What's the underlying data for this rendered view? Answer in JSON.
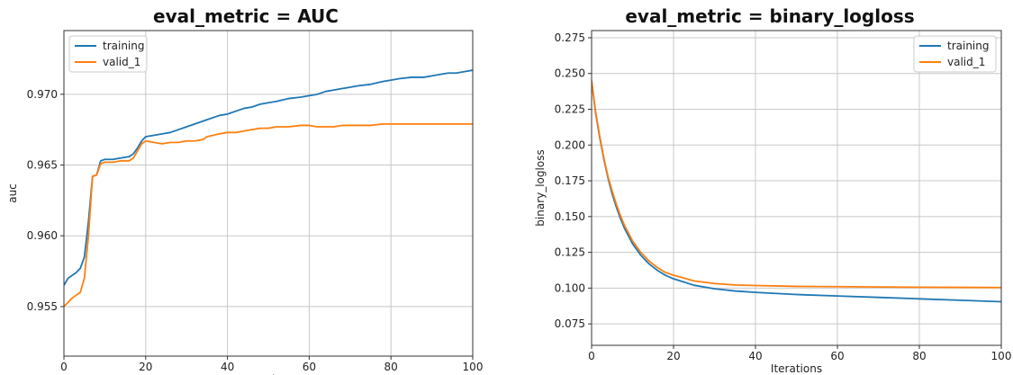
{
  "chart_data": [
    {
      "type": "line",
      "title": "eval_metric = AUC",
      "xlabel": "Iterations",
      "ylabel": "auc",
      "xlim": [
        0,
        100
      ],
      "ylim": [
        0.9515,
        0.9745
      ],
      "xticks": [
        0,
        20,
        40,
        60,
        80,
        100
      ],
      "xtick_labels": [
        "0",
        "20",
        "40",
        "60",
        "80",
        "100"
      ],
      "yticks": [
        0.955,
        0.96,
        0.965,
        0.97
      ],
      "ytick_labels": [
        "0.955",
        "0.960",
        "0.965",
        "0.970"
      ],
      "grid": true,
      "legend_position": "top-left",
      "series": [
        {
          "name": "training",
          "color": "#1f77b4",
          "x": [
            0,
            1,
            2,
            3,
            4,
            5,
            6,
            7,
            8,
            9,
            10,
            12,
            14,
            16,
            17,
            18,
            19,
            20,
            22,
            24,
            26,
            28,
            30,
            32,
            35,
            38,
            40,
            42,
            44,
            46,
            48,
            50,
            52,
            55,
            58,
            60,
            62,
            64,
            66,
            68,
            70,
            72,
            75,
            78,
            80,
            82,
            85,
            88,
            90,
            92,
            94,
            96,
            98,
            100
          ],
          "y": [
            0.9565,
            0.957,
            0.9572,
            0.9574,
            0.9577,
            0.9585,
            0.961,
            0.9642,
            0.9643,
            0.9653,
            0.9654,
            0.9654,
            0.9655,
            0.9656,
            0.9658,
            0.9662,
            0.9667,
            0.967,
            0.9671,
            0.9672,
            0.9673,
            0.9675,
            0.9677,
            0.9679,
            0.9682,
            0.9685,
            0.9686,
            0.9688,
            0.969,
            0.9691,
            0.9693,
            0.9694,
            0.9695,
            0.9697,
            0.9698,
            0.9699,
            0.97,
            0.9702,
            0.9703,
            0.9704,
            0.9705,
            0.9706,
            0.9707,
            0.9709,
            0.971,
            0.9711,
            0.9712,
            0.9712,
            0.9713,
            0.9714,
            0.9715,
            0.9715,
            0.9716,
            0.9717
          ]
        },
        {
          "name": "valid_1",
          "color": "#ff7f0e",
          "x": [
            0,
            1,
            2,
            3,
            4,
            5,
            6,
            7,
            8,
            9,
            10,
            12,
            14,
            16,
            17,
            18,
            19,
            20,
            22,
            24,
            26,
            28,
            30,
            32,
            34,
            35,
            38,
            40,
            42,
            44,
            46,
            48,
            50,
            52,
            55,
            58,
            60,
            62,
            64,
            66,
            68,
            70,
            72,
            75,
            78,
            80,
            82,
            85,
            88,
            90,
            92,
            94,
            96,
            98,
            100
          ],
          "y": [
            0.955,
            0.9553,
            0.9556,
            0.9558,
            0.956,
            0.957,
            0.96,
            0.9642,
            0.9643,
            0.9651,
            0.9652,
            0.9652,
            0.9653,
            0.9653,
            0.9655,
            0.966,
            0.9665,
            0.9667,
            0.9666,
            0.9665,
            0.9666,
            0.9666,
            0.9667,
            0.9667,
            0.9668,
            0.967,
            0.9672,
            0.9673,
            0.9673,
            0.9674,
            0.9675,
            0.9676,
            0.9676,
            0.9677,
            0.9677,
            0.9678,
            0.9678,
            0.9677,
            0.9677,
            0.9677,
            0.9678,
            0.9678,
            0.9678,
            0.9678,
            0.9679,
            0.9679,
            0.9679,
            0.9679,
            0.9679,
            0.9679,
            0.9679,
            0.9679,
            0.9679,
            0.9679,
            0.9679
          ]
        }
      ]
    },
    {
      "type": "line",
      "title": "eval_metric = binary_logloss",
      "xlabel": "Iterations",
      "ylabel": "binary_logloss",
      "xlim": [
        0,
        100
      ],
      "ylim": [
        0.06,
        0.28
      ],
      "xticks": [
        0,
        20,
        40,
        60,
        80,
        100
      ],
      "xtick_labels": [
        "0",
        "20",
        "40",
        "60",
        "80",
        "100"
      ],
      "yticks": [
        0.075,
        0.1,
        0.125,
        0.15,
        0.175,
        0.2,
        0.225,
        0.25,
        0.275
      ],
      "ytick_labels": [
        "0.075",
        "0.100",
        "0.125",
        "0.150",
        "0.175",
        "0.200",
        "0.225",
        "0.250",
        "0.275"
      ],
      "grid": true,
      "legend_position": "top-right",
      "series": [
        {
          "name": "training",
          "color": "#1f77b4",
          "x": [
            0,
            1,
            2,
            3,
            4,
            5,
            6,
            7,
            8,
            10,
            12,
            14,
            16,
            18,
            20,
            25,
            30,
            35,
            40,
            50,
            60,
            70,
            80,
            90,
            100
          ],
          "y": [
            0.245,
            0.222,
            0.205,
            0.19,
            0.177,
            0.166,
            0.157,
            0.149,
            0.142,
            0.131,
            0.123,
            0.117,
            0.1125,
            0.109,
            0.1065,
            0.102,
            0.0995,
            0.098,
            0.097,
            0.0955,
            0.0945,
            0.0935,
            0.0925,
            0.0915,
            0.0905
          ]
        },
        {
          "name": "valid_1",
          "color": "#ff7f0e",
          "x": [
            0,
            1,
            2,
            3,
            4,
            5,
            6,
            7,
            8,
            10,
            12,
            14,
            16,
            18,
            20,
            25,
            30,
            35,
            40,
            50,
            60,
            70,
            80,
            90,
            100
          ],
          "y": [
            0.245,
            0.223,
            0.206,
            0.191,
            0.178,
            0.168,
            0.159,
            0.151,
            0.144,
            0.133,
            0.125,
            0.119,
            0.1145,
            0.111,
            0.109,
            0.105,
            0.1032,
            0.1022,
            0.1018,
            0.1012,
            0.101,
            0.1008,
            0.1006,
            0.1005,
            0.1004
          ]
        }
      ]
    }
  ]
}
